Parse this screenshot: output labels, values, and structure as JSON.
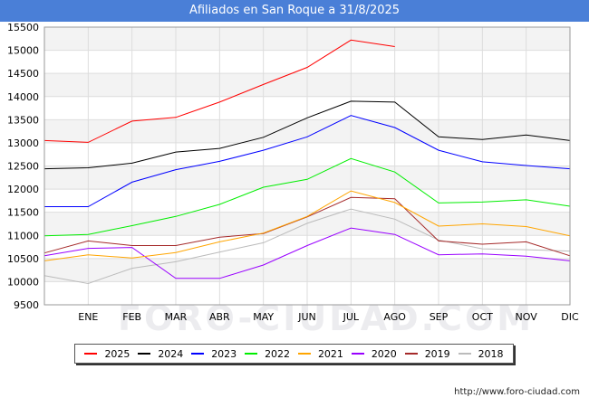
{
  "header": {
    "title": "Afiliados en San Roque a 31/8/2025"
  },
  "footer": {
    "url": "http://www.foro-ciudad.com"
  },
  "watermark": "FORO-CIUDAD.COM",
  "chart_data": {
    "type": "line",
    "title": "Afiliados en San Roque a 31/8/2025",
    "categories": [
      "",
      "ENE",
      "FEB",
      "MAR",
      "ABR",
      "MAY",
      "JUN",
      "JUL",
      "AGO",
      "SEP",
      "OCT",
      "NOV",
      "DIC"
    ],
    "ylim": [
      9500,
      15500
    ],
    "yticks": [
      9500,
      10000,
      10500,
      11000,
      11500,
      12000,
      12500,
      13000,
      13500,
      14000,
      14500,
      15000,
      15500
    ],
    "grid": true,
    "legend_position": "bottom",
    "series": [
      {
        "name": "2025",
        "color": "#ff0000",
        "values": [
          13050,
          13010,
          13470,
          13550,
          13880,
          14260,
          14630,
          15220,
          15080,
          null,
          null,
          null,
          null
        ]
      },
      {
        "name": "2024",
        "color": "#000000",
        "values": [
          12440,
          12460,
          12560,
          12800,
          12880,
          13120,
          13540,
          13900,
          13880,
          13130,
          13070,
          13170,
          13050
        ]
      },
      {
        "name": "2023",
        "color": "#0000ff",
        "values": [
          11620,
          11620,
          12150,
          12420,
          12600,
          12840,
          13130,
          13590,
          13330,
          12840,
          12590,
          12510,
          12440
        ]
      },
      {
        "name": "2022",
        "color": "#00ee00",
        "values": [
          10990,
          11020,
          11210,
          11410,
          11670,
          12040,
          12210,
          12660,
          12370,
          11700,
          11720,
          11770,
          11630
        ]
      },
      {
        "name": "2021",
        "color": "#ffa500",
        "values": [
          10450,
          10580,
          10510,
          10630,
          10860,
          11050,
          11410,
          11960,
          11710,
          11200,
          11250,
          11190,
          10990
        ]
      },
      {
        "name": "2020",
        "color": "#9900ff",
        "values": [
          10560,
          10720,
          10740,
          10070,
          10070,
          10360,
          10780,
          11160,
          11020,
          10580,
          10600,
          10550,
          10450
        ]
      },
      {
        "name": "2019",
        "color": "#a52a2a",
        "values": [
          10620,
          10880,
          10780,
          10780,
          10960,
          11040,
          11400,
          11820,
          11790,
          10880,
          10810,
          10860,
          10560
        ]
      },
      {
        "name": "2018",
        "color": "#bbbbbb",
        "values": [
          10130,
          9960,
          10290,
          10430,
          10640,
          10840,
          11260,
          11570,
          11350,
          10900,
          10710,
          10690,
          10660
        ]
      }
    ]
  }
}
